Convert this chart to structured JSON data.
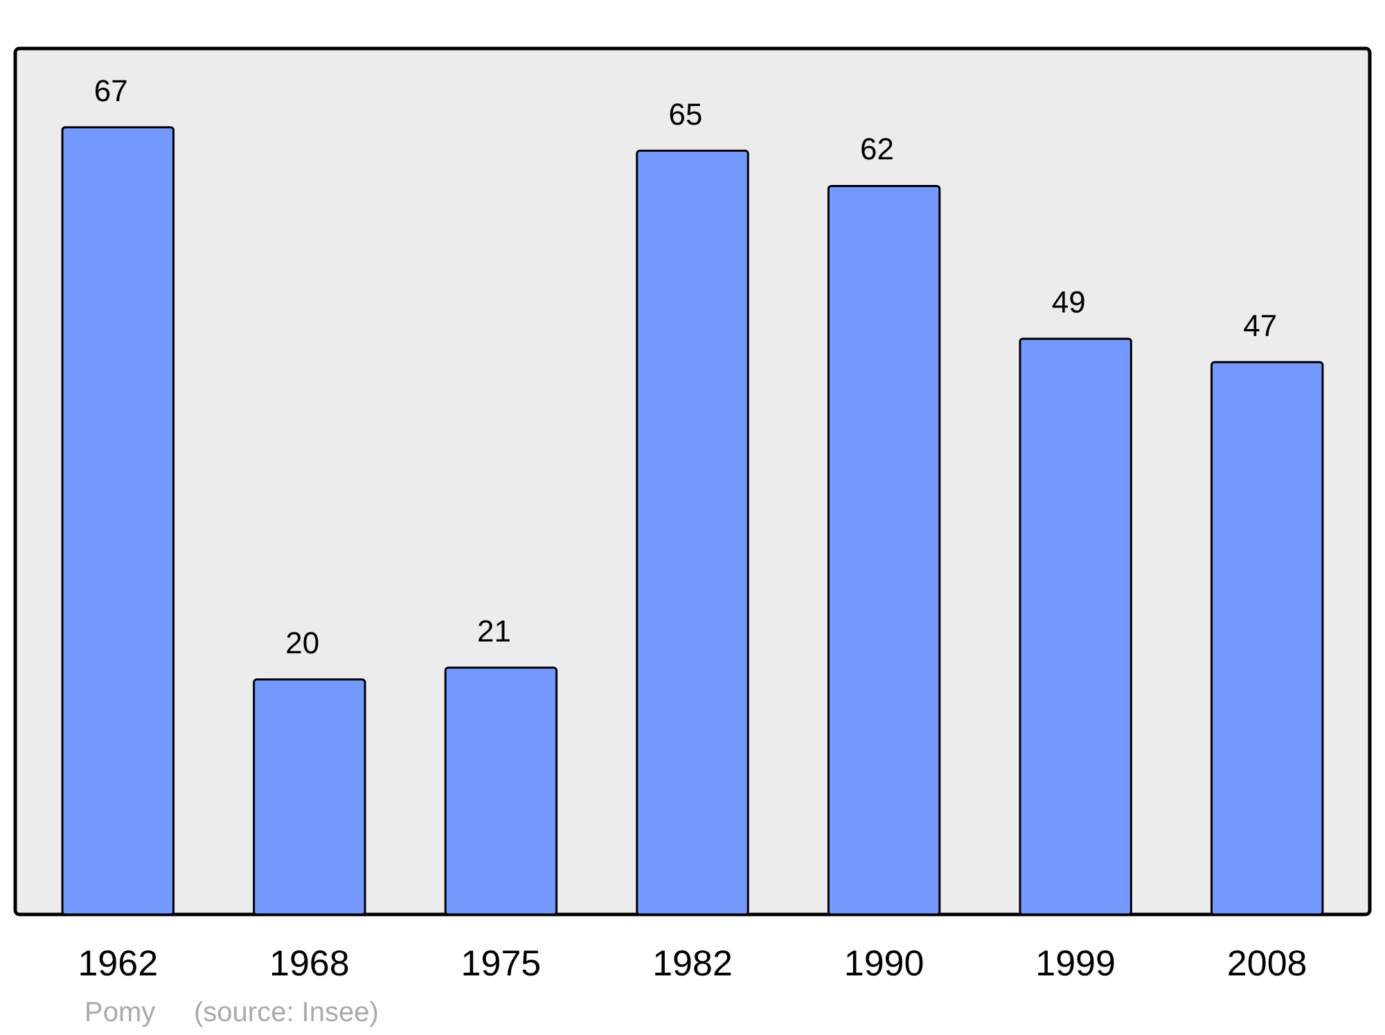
{
  "chart_data": {
    "type": "bar",
    "categories": [
      "1962",
      "1968",
      "1975",
      "1982",
      "1990",
      "1999",
      "2008"
    ],
    "values": [
      67,
      20,
      21,
      65,
      62,
      49,
      47
    ],
    "color": "#7399ff",
    "data_labels": true,
    "annotations": [
      "Pomy",
      "(source: Insee)"
    ]
  }
}
